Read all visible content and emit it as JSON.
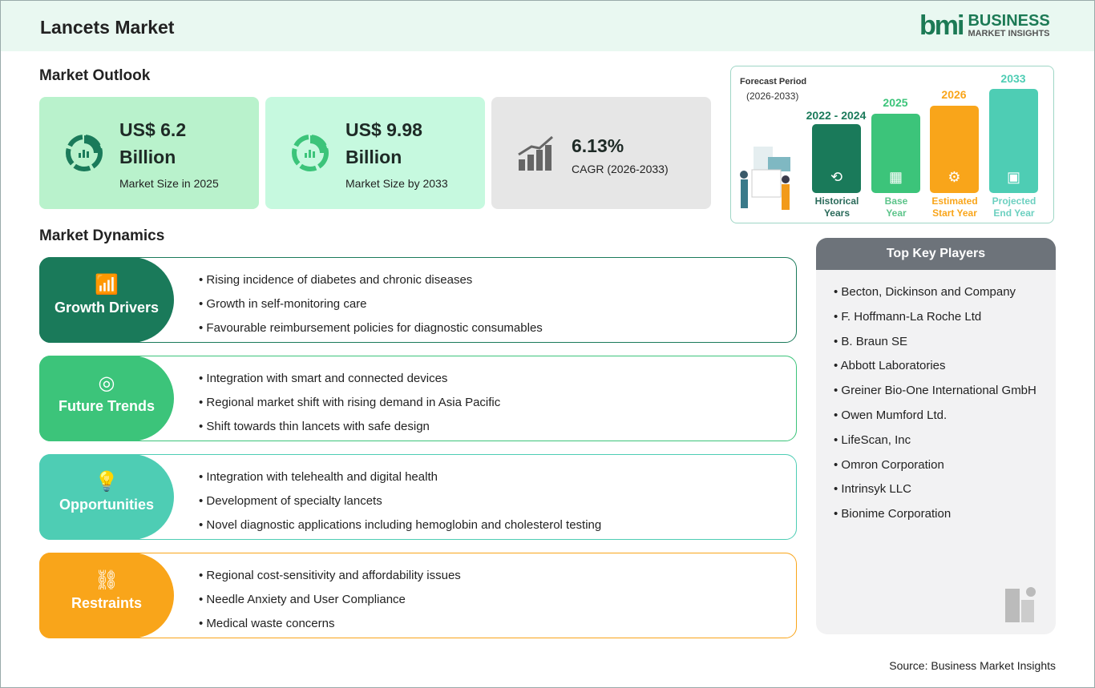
{
  "header": {
    "title": "Lancets Market",
    "logo": {
      "mark": "bmi",
      "line1": "BUSINESS",
      "line2": "MARKET INSIGHTS"
    }
  },
  "outlook": {
    "heading": "Market Outlook",
    "cards": [
      {
        "value": "US$ 6.2",
        "value2": "Billion",
        "label": "Market Size in 2025",
        "color": "#b9f2cc",
        "icon": "donut-chart-icon"
      },
      {
        "value": "US$ 9.98",
        "value2": "Billion",
        "label": "Market Size by 2033",
        "color": "#c6f9df",
        "icon": "donut-chart-icon"
      },
      {
        "value": "6.13%",
        "label": "CAGR (2026-2033)",
        "color": "#e6e6e6",
        "icon": "growth-bars-icon"
      }
    ]
  },
  "forecast": {
    "label": "Forecast Period",
    "range": "(2026-2033)",
    "periods": [
      {
        "year": "2022 - 2024",
        "caption1": "Historical",
        "caption2": "Years",
        "color": "#1a7a5a",
        "icon": "history-icon"
      },
      {
        "year": "2025",
        "caption1": "Base",
        "caption2": "Year",
        "color": "#3cc47a",
        "icon": "calendar-icon"
      },
      {
        "year": "2026",
        "caption1": "Estimated",
        "caption2": "Start Year",
        "color": "#f9a51a",
        "icon": "gear-chart-icon"
      },
      {
        "year": "2033",
        "caption1": "Projected",
        "caption2": "End Year",
        "color": "#4ecdb4",
        "icon": "presentation-icon"
      }
    ]
  },
  "dynamics": {
    "heading": "Market Dynamics",
    "groups": [
      {
        "label": "Growth Drivers",
        "color": "#1a7a5a",
        "icon": "growth-chart-icon",
        "items": [
          "Rising incidence of diabetes and chronic diseases",
          "Growth in self-monitoring care",
          "Favourable reimbursement policies for diagnostic consumables"
        ]
      },
      {
        "label": "Future Trends",
        "color": "#3cc47a",
        "icon": "target-icon",
        "items": [
          "Integration with smart and connected devices",
          "Regional market shift with rising demand in Asia Pacific",
          "Shift towards thin lancets with safe design"
        ]
      },
      {
        "label": "Opportunities",
        "color": "#4ecdb4",
        "icon": "lightbulb-hand-icon",
        "items": [
          "Integration with telehealth and digital health",
          "Development of specialty lancets",
          "Novel diagnostic applications including hemoglobin and cholesterol testing"
        ]
      },
      {
        "label": "Restraints",
        "color": "#f9a51a",
        "icon": "broken-link-icon",
        "items": [
          "Regional cost-sensitivity and affordability issues",
          "Needle Anxiety and User Compliance",
          "Medical waste concerns"
        ]
      }
    ]
  },
  "key_players": {
    "heading": "Top Key Players",
    "items": [
      "Becton, Dickinson and Company",
      "F. Hoffmann-La Roche Ltd",
      "B. Braun SE",
      "Abbott Laboratories",
      "Greiner Bio-One International GmbH",
      "Owen Mumford Ltd.",
      "LifeScan, Inc",
      "Omron Corporation",
      "Intrinsyk LLC",
      "Bionime Corporation"
    ]
  },
  "source": "Source: Business Market Insights"
}
